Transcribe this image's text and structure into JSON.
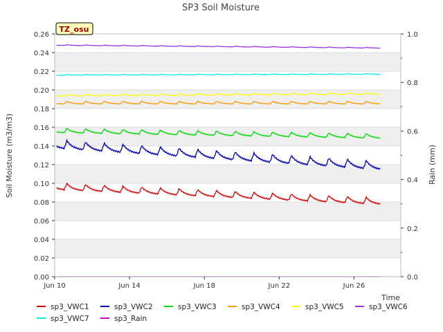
{
  "chart_data": {
    "type": "line",
    "title": "SP3 Soil Moisture",
    "ylabel": "Soil Moisture (m3/m3)",
    "y2label": "Rain (mm)",
    "xlabel": "Time",
    "annotation": "TZ_osu",
    "ylim": [
      0,
      0.26
    ],
    "y2lim": [
      0,
      1.0
    ],
    "xlim_days": [
      10,
      28.5
    ],
    "x_start": "Jun 10",
    "x_end": "Jun 27",
    "x_month": "Jun",
    "xticks": [
      {
        "day": 10,
        "label": "Jun 10"
      },
      {
        "day": 14,
        "label": "Jun 14"
      },
      {
        "day": 18,
        "label": "Jun 18"
      },
      {
        "day": 22,
        "label": "Jun 22"
      },
      {
        "day": 26,
        "label": "Jun 26"
      }
    ],
    "yticks": [
      "0.00",
      "0.02",
      "0.04",
      "0.06",
      "0.08",
      "0.10",
      "0.12",
      "0.14",
      "0.16",
      "0.18",
      "0.20",
      "0.22",
      "0.24",
      "0.26"
    ],
    "y2ticks": [
      "0.0",
      "0.2",
      "0.4",
      "0.6",
      "0.8",
      "1.0"
    ],
    "grid": "alternating horizontal bands",
    "legend": "bottom",
    "series": [
      {
        "name": "sp3_VWC1",
        "color": "#dd0000",
        "start": 0.096,
        "end": 0.08,
        "amp": 0.007
      },
      {
        "name": "sp3_VWC2",
        "color": "#0000bb",
        "start": 0.141,
        "end": 0.118,
        "amp": 0.009
      },
      {
        "name": "sp3_VWC3",
        "color": "#00dd00",
        "start": 0.156,
        "end": 0.15,
        "amp": 0.005
      },
      {
        "name": "sp3_VWC4",
        "color": "#ff9900",
        "start": 0.186,
        "end": 0.186,
        "amp": 0.003
      },
      {
        "name": "sp3_VWC5",
        "color": "#ffff00",
        "start": 0.194,
        "end": 0.196,
        "amp": 0.002
      },
      {
        "name": "sp3_VWC6",
        "color": "#9933dd",
        "start": 0.248,
        "end": 0.245,
        "amp": 0.0008
      },
      {
        "name": "sp3_VWC7",
        "color": "#00eeee",
        "start": 0.216,
        "end": 0.217,
        "amp": 0.0008
      },
      {
        "name": "sp3_Rain",
        "color": "#cc00cc",
        "start": 0.0,
        "end": 0.0,
        "amp": 0.0
      }
    ]
  }
}
